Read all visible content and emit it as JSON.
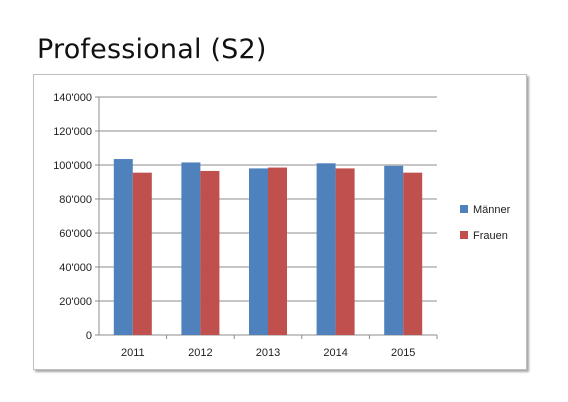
{
  "page": {
    "title": "Professional (S2)"
  },
  "chart_data": {
    "type": "bar",
    "categories": [
      "2011",
      "2012",
      "2013",
      "2014",
      "2015"
    ],
    "series": [
      {
        "name": "Männer",
        "color": "#4f81bd",
        "values": [
          103500,
          101500,
          98000,
          101000,
          99500
        ]
      },
      {
        "name": "Frauen",
        "color": "#c0504d",
        "values": [
          95500,
          96500,
          98500,
          98000,
          95500
        ]
      }
    ],
    "y_ticks": [
      "0",
      "20'000",
      "40'000",
      "60'000",
      "80'000",
      "100'000",
      "120'000",
      "140'000"
    ],
    "ylim": [
      0,
      140000
    ],
    "y_step": 20000,
    "grid": true,
    "legend_position": "right"
  }
}
